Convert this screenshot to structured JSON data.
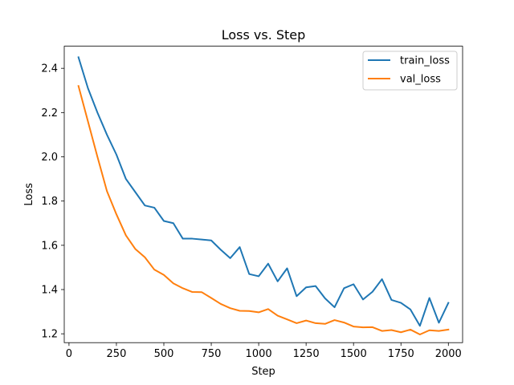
{
  "chart_data": {
    "type": "line",
    "title": "Loss vs. Step",
    "xlabel": "Step",
    "ylabel": "Loss",
    "xlim": [
      -25,
      2075
    ],
    "ylim": [
      1.16,
      2.5
    ],
    "xticks": [
      0,
      250,
      500,
      750,
      1000,
      1250,
      1500,
      1750,
      2000
    ],
    "yticks": [
      1.2,
      1.4,
      1.6,
      1.8,
      2.0,
      2.2,
      2.4
    ],
    "ytick_labels": [
      "1.2",
      "1.4",
      "1.6",
      "1.8",
      "2.0",
      "2.2",
      "2.4"
    ],
    "grid": false,
    "legend_position": "top-right",
    "x": [
      50,
      100,
      150,
      200,
      250,
      300,
      350,
      400,
      450,
      500,
      550,
      600,
      650,
      700,
      750,
      800,
      850,
      900,
      950,
      1000,
      1050,
      1100,
      1150,
      1200,
      1250,
      1300,
      1350,
      1400,
      1450,
      1500,
      1550,
      1600,
      1650,
      1700,
      1750,
      1800,
      1850,
      1900,
      1950,
      2000
    ],
    "series": [
      {
        "name": "train_loss",
        "color": "#1f77b4",
        "values": [
          2.45,
          2.31,
          2.2,
          2.1,
          2.01,
          1.9,
          1.84,
          1.78,
          1.77,
          1.71,
          1.7,
          1.63,
          1.63,
          1.626,
          1.622,
          1.58,
          1.542,
          1.592,
          1.47,
          1.46,
          1.517,
          1.437,
          1.496,
          1.37,
          1.41,
          1.416,
          1.36,
          1.32,
          1.406,
          1.424,
          1.355,
          1.39,
          1.447,
          1.353,
          1.34,
          1.31,
          1.236,
          1.362,
          1.25,
          1.34
        ]
      },
      {
        "name": "val_loss",
        "color": "#ff7f0e",
        "values": [
          2.32,
          2.16,
          2.0,
          1.845,
          1.74,
          1.645,
          1.583,
          1.546,
          1.49,
          1.466,
          1.428,
          1.406,
          1.389,
          1.388,
          1.362,
          1.335,
          1.316,
          1.304,
          1.303,
          1.297,
          1.312,
          1.282,
          1.265,
          1.248,
          1.26,
          1.248,
          1.245,
          1.262,
          1.251,
          1.233,
          1.229,
          1.23,
          1.213,
          1.217,
          1.207,
          1.219,
          1.197,
          1.216,
          1.213,
          1.219
        ]
      }
    ]
  }
}
